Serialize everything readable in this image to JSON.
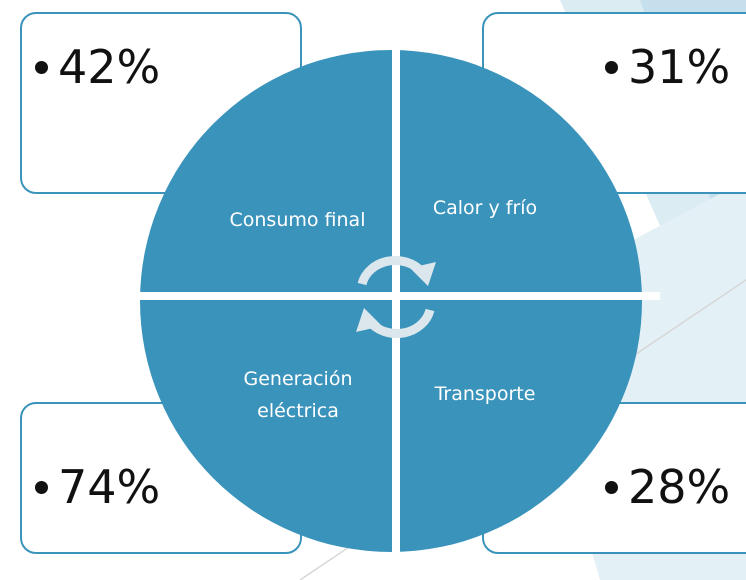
{
  "quadrants": [
    {
      "label": "Consumo final",
      "value": "42%"
    },
    {
      "label": "Calor y frío",
      "value": "31%"
    },
    {
      "label": "Generación eléctrica",
      "value": "74%"
    },
    {
      "label": "Transporte",
      "value": "28%"
    }
  ]
}
